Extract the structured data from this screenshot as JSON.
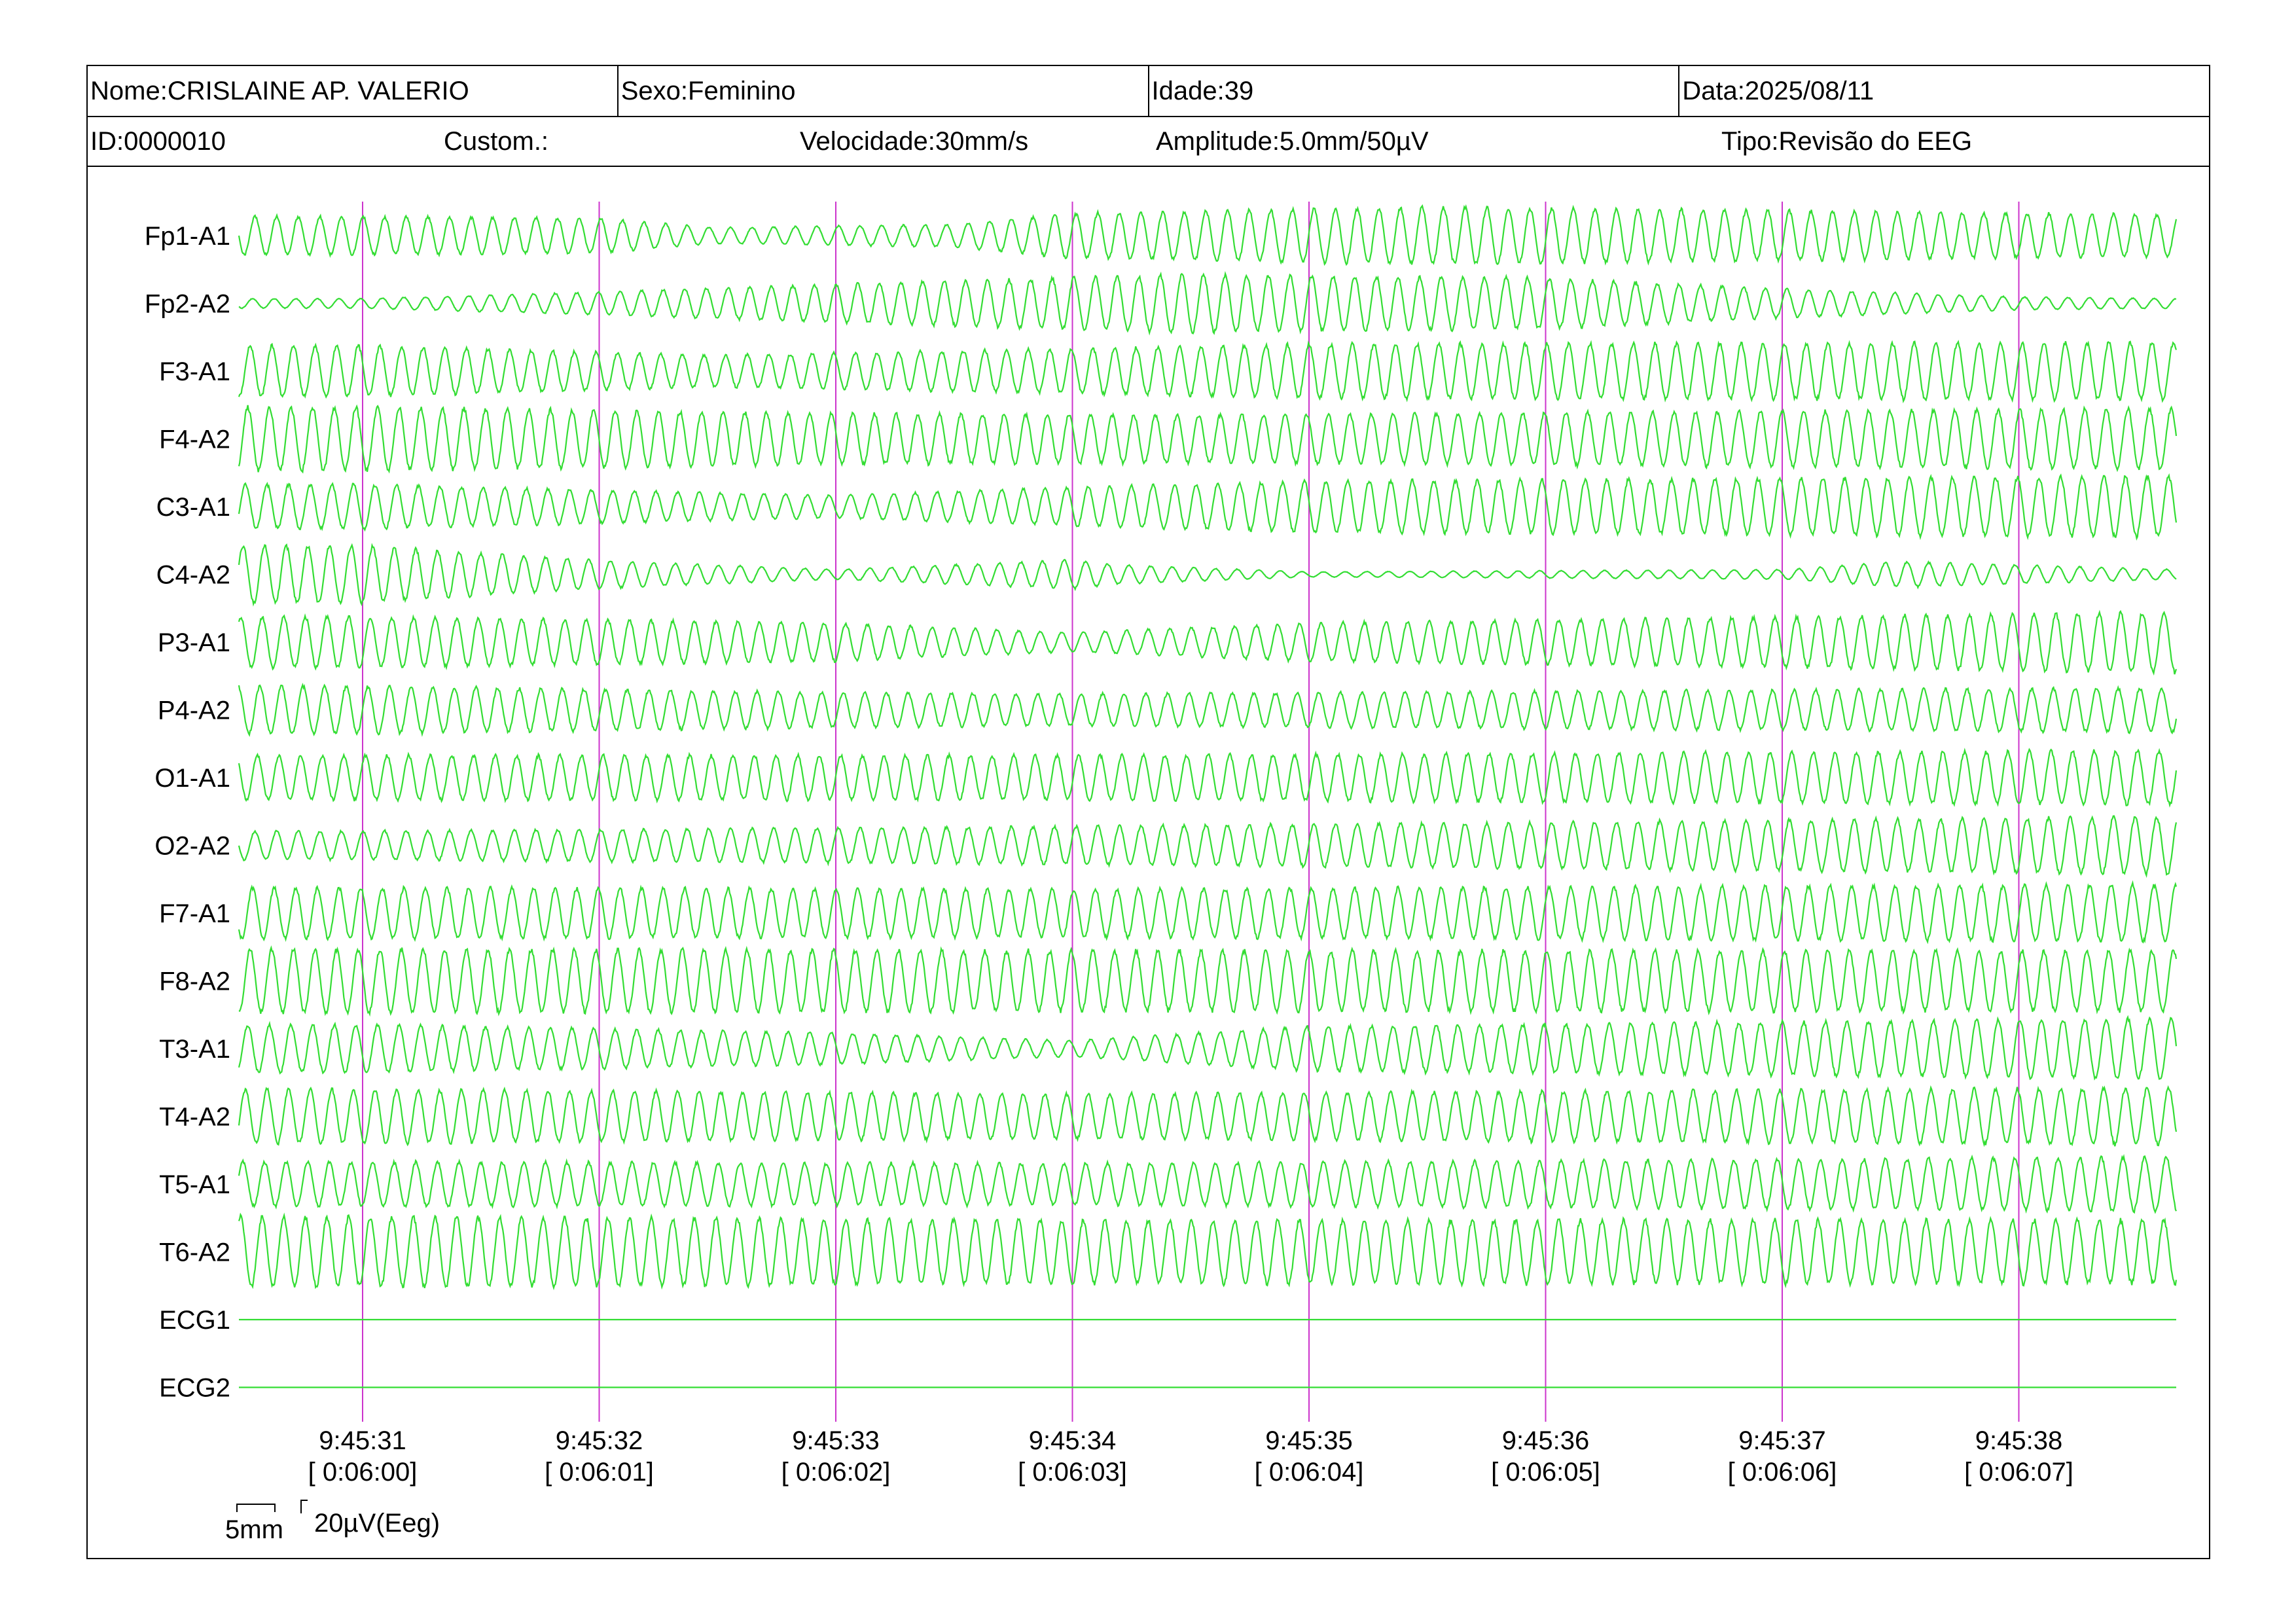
{
  "header": {
    "name": "Nome:CRISLAINE AP. VALERIO",
    "sex": "Sexo:Feminino",
    "age": "Idade:39",
    "date": "Data:2025/08/11",
    "id": "ID:0000010",
    "custom": "Custom.:",
    "speed": "Velocidade:30mm/s",
    "amplitude": "Amplitude:5.0mm/50µV",
    "type": "Tipo:Revisão do EEG"
  },
  "scale": {
    "time_bar": "5mm",
    "amp_bar": "20µV(Eeg)"
  },
  "colors": {
    "trace": "#33dd33",
    "marker": "#cc33cc",
    "frame": "#000000"
  },
  "chart_data": {
    "type": "line",
    "title": "",
    "xlabel": "",
    "ylabel": "",
    "grid": false,
    "time_markers": [
      {
        "clock": "9:45:31",
        "elapsed": "[ 0:06:00]"
      },
      {
        "clock": "9:45:32",
        "elapsed": "[ 0:06:01]"
      },
      {
        "clock": "9:45:33",
        "elapsed": "[ 0:06:02]"
      },
      {
        "clock": "9:45:34",
        "elapsed": "[ 0:06:03]"
      },
      {
        "clock": "9:45:35",
        "elapsed": "[ 0:06:04]"
      },
      {
        "clock": "9:45:36",
        "elapsed": "[ 0:06:05]"
      },
      {
        "clock": "9:45:37",
        "elapsed": "[ 0:06:06]"
      },
      {
        "clock": "9:45:38",
        "elapsed": "[ 0:06:07]"
      }
    ],
    "x_range_seconds": [
      -0.5,
      7.65
    ],
    "channels": [
      {
        "name": "Fp1-A1",
        "freq_hz": 11,
        "amplitude_profile": [
          [
            0,
            0.6
          ],
          [
            1,
            0.55
          ],
          [
            1.5,
            0.25
          ],
          [
            2.5,
            0.35
          ],
          [
            3.0,
            0.7
          ],
          [
            4.5,
            0.9
          ],
          [
            7.65,
            0.65
          ]
        ]
      },
      {
        "name": "Fp2-A2",
        "freq_hz": 11,
        "amplitude_profile": [
          [
            0,
            0.15
          ],
          [
            1,
            0.35
          ],
          [
            2,
            0.6
          ],
          [
            3.5,
            0.9
          ],
          [
            5,
            0.8
          ],
          [
            6,
            0.45
          ],
          [
            7,
            0.2
          ],
          [
            7.65,
            0.15
          ]
        ]
      },
      {
        "name": "F3-A1",
        "freq_hz": 11,
        "amplitude_profile": [
          [
            0,
            0.8
          ],
          [
            1.5,
            0.5
          ],
          [
            3,
            0.7
          ],
          [
            4,
            0.85
          ],
          [
            7.65,
            0.9
          ]
        ]
      },
      {
        "name": "F4-A2",
        "freq_hz": 11,
        "amplitude_profile": [
          [
            0,
            1.0
          ],
          [
            2,
            0.8
          ],
          [
            3.5,
            0.75
          ],
          [
            7.65,
            0.95
          ]
        ]
      },
      {
        "name": "C3-A1",
        "freq_hz": 11,
        "amplitude_profile": [
          [
            0,
            0.7
          ],
          [
            2,
            0.35
          ],
          [
            3,
            0.6
          ],
          [
            4,
            0.8
          ],
          [
            7.65,
            0.95
          ]
        ]
      },
      {
        "name": "C4-A2",
        "freq_hz": 11,
        "amplitude_profile": [
          [
            0,
            0.9
          ],
          [
            1,
            0.45
          ],
          [
            2,
            0.15
          ],
          [
            3,
            0.45
          ],
          [
            3.2,
            0.3
          ],
          [
            4,
            0.08
          ],
          [
            6,
            0.15
          ],
          [
            6.5,
            0.4
          ],
          [
            7.65,
            0.15
          ]
        ]
      },
      {
        "name": "P3-A1",
        "freq_hz": 11,
        "amplitude_profile": [
          [
            0,
            0.8
          ],
          [
            2,
            0.6
          ],
          [
            3,
            0.3
          ],
          [
            4,
            0.6
          ],
          [
            7.65,
            0.95
          ]
        ]
      },
      {
        "name": "P4-A2",
        "freq_hz": 11,
        "amplitude_profile": [
          [
            0,
            0.75
          ],
          [
            2,
            0.55
          ],
          [
            3,
            0.5
          ],
          [
            7.65,
            0.7
          ]
        ]
      },
      {
        "name": "O1-A1",
        "freq_hz": 11,
        "amplitude_profile": [
          [
            0,
            0.7
          ],
          [
            3,
            0.7
          ],
          [
            7.65,
            0.85
          ]
        ]
      },
      {
        "name": "O2-A2",
        "freq_hz": 11,
        "amplitude_profile": [
          [
            0,
            0.45
          ],
          [
            3,
            0.6
          ],
          [
            7.65,
            0.9
          ]
        ]
      },
      {
        "name": "F7-A1",
        "freq_hz": 11,
        "amplitude_profile": [
          [
            0,
            0.8
          ],
          [
            3,
            0.75
          ],
          [
            7.65,
            0.9
          ]
        ]
      },
      {
        "name": "F8-A2",
        "freq_hz": 11,
        "amplitude_profile": [
          [
            0,
            1.0
          ],
          [
            3,
            0.95
          ],
          [
            7.65,
            0.95
          ]
        ]
      },
      {
        "name": "T3-A1",
        "freq_hz": 11,
        "amplitude_profile": [
          [
            0,
            0.75
          ],
          [
            2,
            0.5
          ],
          [
            3,
            0.25
          ],
          [
            4,
            0.7
          ],
          [
            7.65,
            0.95
          ]
        ]
      },
      {
        "name": "T4-A2",
        "freq_hz": 11,
        "amplitude_profile": [
          [
            0,
            0.85
          ],
          [
            3,
            0.7
          ],
          [
            7.65,
            0.9
          ]
        ]
      },
      {
        "name": "T5-A1",
        "freq_hz": 11,
        "amplitude_profile": [
          [
            0,
            0.7
          ],
          [
            3,
            0.65
          ],
          [
            7.65,
            0.85
          ]
        ]
      },
      {
        "name": "T6-A2",
        "freq_hz": 11,
        "amplitude_profile": [
          [
            0,
            1.1
          ],
          [
            3,
            1.0
          ],
          [
            7.65,
            1.0
          ]
        ]
      },
      {
        "name": "ECG1",
        "freq_hz": 0,
        "amplitude_profile": [
          [
            0,
            0
          ],
          [
            7.65,
            0
          ]
        ]
      },
      {
        "name": "ECG2",
        "freq_hz": 0,
        "amplitude_profile": [
          [
            0,
            0
          ],
          [
            7.65,
            0
          ]
        ]
      }
    ]
  }
}
